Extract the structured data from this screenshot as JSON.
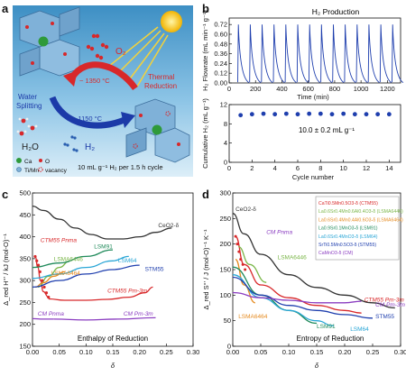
{
  "panel_a": {
    "letter": "a",
    "o2_label": "O₂",
    "temp_high": "~ 1350 °C",
    "temp_low": "~ 1150 °C",
    "thermal_reduction": "Thermal\nReduction",
    "water_splitting": "Water\nSplitting",
    "h2o": "H₂O",
    "h2": "H₂",
    "legend": {
      "ca": "Ca",
      "o": "O",
      "timn": "Ti/Mn",
      "vacancy": "vacancy"
    },
    "caption": "10 mL g⁻¹ H₂ per 1.5 h cycle",
    "colors": {
      "bg_top": "#5aa9d6",
      "bg_bottom": "#cfe6f4",
      "red_arrow": "#d8282a",
      "blue_arrow": "#1c3aa8",
      "ca": "#2e9a3a",
      "oct": "#7fb1d8"
    }
  },
  "panel_b": {
    "letter": "b",
    "title": "H₂ Production",
    "top_ylabel": "H₂ Flowrate (mL min⁻¹ g⁻¹)",
    "top_xlabel": "Time (min)",
    "bottom_ylabel": "Cumulative H₂ (mL g⁻¹)",
    "bottom_xlabel": "Cycle number",
    "annotation": "10.0 ± 0.2 mL g⁻¹"
  },
  "panel_c": {
    "letter": "c",
    "ylabel": "Δ_red H°' / kJ (mol-O)⁻¹",
    "xlabel": "δ",
    "caption": "Enthalpy of Reduction"
  },
  "panel_d": {
    "letter": "d",
    "ylabel": "Δ_red S°' / J (mol-O)⁻¹ K⁻¹",
    "xlabel": "δ",
    "caption": "Entropy of Reduction",
    "legend": [
      {
        "label": "CaTi0.5Mn0.5O3-δ (CTM55)",
        "color": "#d8282a"
      },
      {
        "label": "La0.6Sr0.4Mn0.6Al0.4O3-δ (LSMA6446)",
        "color": "#7ab648"
      },
      {
        "label": "La0.6Sr0.4Mn0.4Al0.6O3-δ (LSMA6464)",
        "color": "#e58a1f"
      },
      {
        "label": "La0.9Sr0.1MnO3-δ (LSM91)",
        "color": "#1f8a5a"
      },
      {
        "label": "La0.6Sr0.4MnO3-δ (LSM64)",
        "color": "#2aa6d6"
      },
      {
        "label": "SrTi0.5Mn0.5O3-δ (STM55)",
        "color": "#1f3fae"
      },
      {
        "label": "CaMnO3-δ (CM)",
        "color": "#8a3cc0"
      }
    ]
  },
  "chart_data": [
    {
      "type": "line",
      "panel": "b-top",
      "title": "H₂ Production",
      "xlabel": "Time (min)",
      "ylabel": "H₂ Flowrate (mL min⁻¹ g⁻¹)",
      "xlim": [
        0,
        1300
      ],
      "ylim": [
        0,
        0.8
      ],
      "xticks": [
        0,
        200,
        400,
        600,
        800,
        1000,
        1200
      ],
      "yticks": [
        0.0,
        0.12,
        0.24,
        0.36,
        0.48,
        0.6,
        0.72
      ],
      "peak_times": [
        70,
        160,
        250,
        340,
        430,
        520,
        610,
        700,
        790,
        880,
        970,
        1060,
        1150,
        1240
      ],
      "peak_value": 0.72,
      "color": "#1f3fae"
    },
    {
      "type": "scatter",
      "panel": "b-bottom",
      "xlabel": "Cycle number",
      "ylabel": "Cumulative H₂ (mL g⁻¹)",
      "xlim": [
        0,
        15
      ],
      "ylim": [
        0,
        12
      ],
      "xticks": [
        0,
        2,
        4,
        6,
        8,
        10,
        12,
        14
      ],
      "yticks": [
        0,
        4,
        8,
        12
      ],
      "x": [
        1,
        2,
        3,
        4,
        5,
        6,
        7,
        8,
        9,
        10,
        11,
        12,
        13,
        14
      ],
      "y": [
        9.8,
        10.0,
        10.1,
        10.0,
        10.1,
        10.0,
        10.1,
        10.1,
        10.0,
        10.1,
        10.0,
        10.0,
        10.0,
        10.0
      ],
      "color": "#1f3fae"
    },
    {
      "type": "line",
      "panel": "c",
      "xlabel": "δ",
      "ylabel": "Δ_red H°' / kJ (mol-O)⁻¹",
      "xlim": [
        0,
        0.3
      ],
      "ylim": [
        150,
        500
      ],
      "xticks": [
        0.0,
        0.05,
        0.1,
        0.15,
        0.2,
        0.25,
        0.3
      ],
      "yticks": [
        150,
        200,
        250,
        300,
        350,
        400,
        450,
        500
      ],
      "series": [
        {
          "name": "CeO2-δ",
          "color": "#333333",
          "x": [
            0.0,
            0.02,
            0.05,
            0.08,
            0.11,
            0.14,
            0.17,
            0.2,
            0.23,
            0.26
          ],
          "y": [
            470,
            460,
            440,
            420,
            405,
            395,
            395,
            400,
            410,
            420
          ]
        },
        {
          "name": "CTM55 Pnma",
          "color": "#d8282a",
          "x": [
            0.005,
            0.01,
            0.015,
            0.02,
            0.03
          ],
          "y": [
            355,
            330,
            300,
            275,
            262
          ]
        },
        {
          "name": "CTM55 Pm-3m",
          "color": "#d8282a",
          "x": [
            0.03,
            0.06,
            0.1,
            0.14,
            0.18,
            0.21,
            0.225
          ],
          "y": [
            258,
            255,
            255,
            257,
            262,
            272,
            285
          ]
        },
        {
          "name": "LSMA6446",
          "color": "#7ab648",
          "x": [
            0.01,
            0.03,
            0.05,
            0.07
          ],
          "y": [
            285,
            310,
            330,
            345
          ]
        },
        {
          "name": "LSMA6464",
          "color": "#e58a1f",
          "x": [
            0.005,
            0.02,
            0.04,
            0.06
          ],
          "y": [
            285,
            295,
            310,
            320
          ]
        },
        {
          "name": "LSM91",
          "color": "#1f8a5a",
          "x": [
            0.0,
            0.05,
            0.1,
            0.15
          ],
          "y": [
            330,
            340,
            355,
            370
          ]
        },
        {
          "name": "LSM64",
          "color": "#2aa6d6",
          "x": [
            0.0,
            0.05,
            0.1,
            0.15,
            0.18
          ],
          "y": [
            305,
            315,
            330,
            345,
            355
          ]
        },
        {
          "name": "STM55",
          "color": "#1f3fae",
          "x": [
            0.0,
            0.05,
            0.1,
            0.15,
            0.2
          ],
          "y": [
            285,
            300,
            315,
            325,
            335
          ]
        },
        {
          "name": "CM Pnma",
          "color": "#8a3cc0",
          "x": [
            0.0,
            0.02,
            0.04
          ],
          "y": [
            213,
            212,
            212
          ]
        },
        {
          "name": "CM Pm-3m",
          "color": "#8a3cc0",
          "x": [
            0.04,
            0.1,
            0.16,
            0.23
          ],
          "y": [
            212,
            210,
            212,
            215
          ]
        }
      ],
      "annotations": [
        "CeO2-δ",
        "CTM55 Pnma",
        "LSMA6446",
        "LSMA6464",
        "LSM91",
        "LSM64",
        "STM55",
        "CTM55 Pm-3m",
        "CM Pnma",
        "CM Pm-3m"
      ]
    },
    {
      "type": "line",
      "panel": "d",
      "xlabel": "δ",
      "ylabel": "Δ_red S°' / J (mol-O)⁻¹ K⁻¹",
      "xlim": [
        0,
        0.3
      ],
      "ylim": [
        0,
        300
      ],
      "xticks": [
        0.0,
        0.05,
        0.1,
        0.15,
        0.2,
        0.25,
        0.3
      ],
      "yticks": [
        0,
        50,
        100,
        150,
        200,
        250,
        300
      ],
      "series": [
        {
          "name": "CeO2-δ",
          "color": "#333333",
          "x": [
            0.0,
            0.02,
            0.05,
            0.1,
            0.15,
            0.2,
            0.25,
            0.29
          ],
          "y": [
            260,
            220,
            180,
            140,
            115,
            100,
            85,
            75
          ]
        },
        {
          "name": "CTM55",
          "color": "#d8282a",
          "x": [
            0.005,
            0.02,
            0.05,
            0.1,
            0.15,
            0.2,
            0.23
          ],
          "y": [
            215,
            160,
            120,
            95,
            80,
            70,
            65
          ]
        },
        {
          "name": "LSMA6446",
          "color": "#7ab648",
          "x": [
            0.01,
            0.03,
            0.06
          ],
          "y": [
            195,
            160,
            125
          ]
        },
        {
          "name": "LSMA6464",
          "color": "#e58a1f",
          "x": [
            0.005,
            0.02,
            0.04
          ],
          "y": [
            170,
            120,
            85
          ]
        },
        {
          "name": "LSM91",
          "color": "#1f8a5a",
          "x": [
            0.0,
            0.05,
            0.1,
            0.15
          ],
          "y": [
            155,
            100,
            70,
            45
          ]
        },
        {
          "name": "LSM64",
          "color": "#2aa6d6",
          "x": [
            0.0,
            0.05,
            0.1,
            0.15,
            0.18
          ],
          "y": [
            140,
            95,
            70,
            50,
            40
          ]
        },
        {
          "name": "STM55",
          "color": "#1f3fae",
          "x": [
            0.0,
            0.05,
            0.1,
            0.15,
            0.2,
            0.25
          ],
          "y": [
            135,
            100,
            80,
            70,
            62,
            55
          ]
        },
        {
          "name": "CM",
          "color": "#8a3cc0",
          "x": [
            0.0,
            0.05,
            0.1,
            0.15,
            0.2,
            0.23
          ],
          "y": [
            105,
            95,
            90,
            85,
            85,
            88
          ]
        }
      ],
      "annotations": [
        "CeO2-δ",
        "CM Pnma",
        "LSMA6446",
        "CTM55 Pm-3m",
        "STM55",
        "CM Pm-3m",
        "LSM64",
        "LSM91",
        "LSMA6464"
      ]
    }
  ]
}
